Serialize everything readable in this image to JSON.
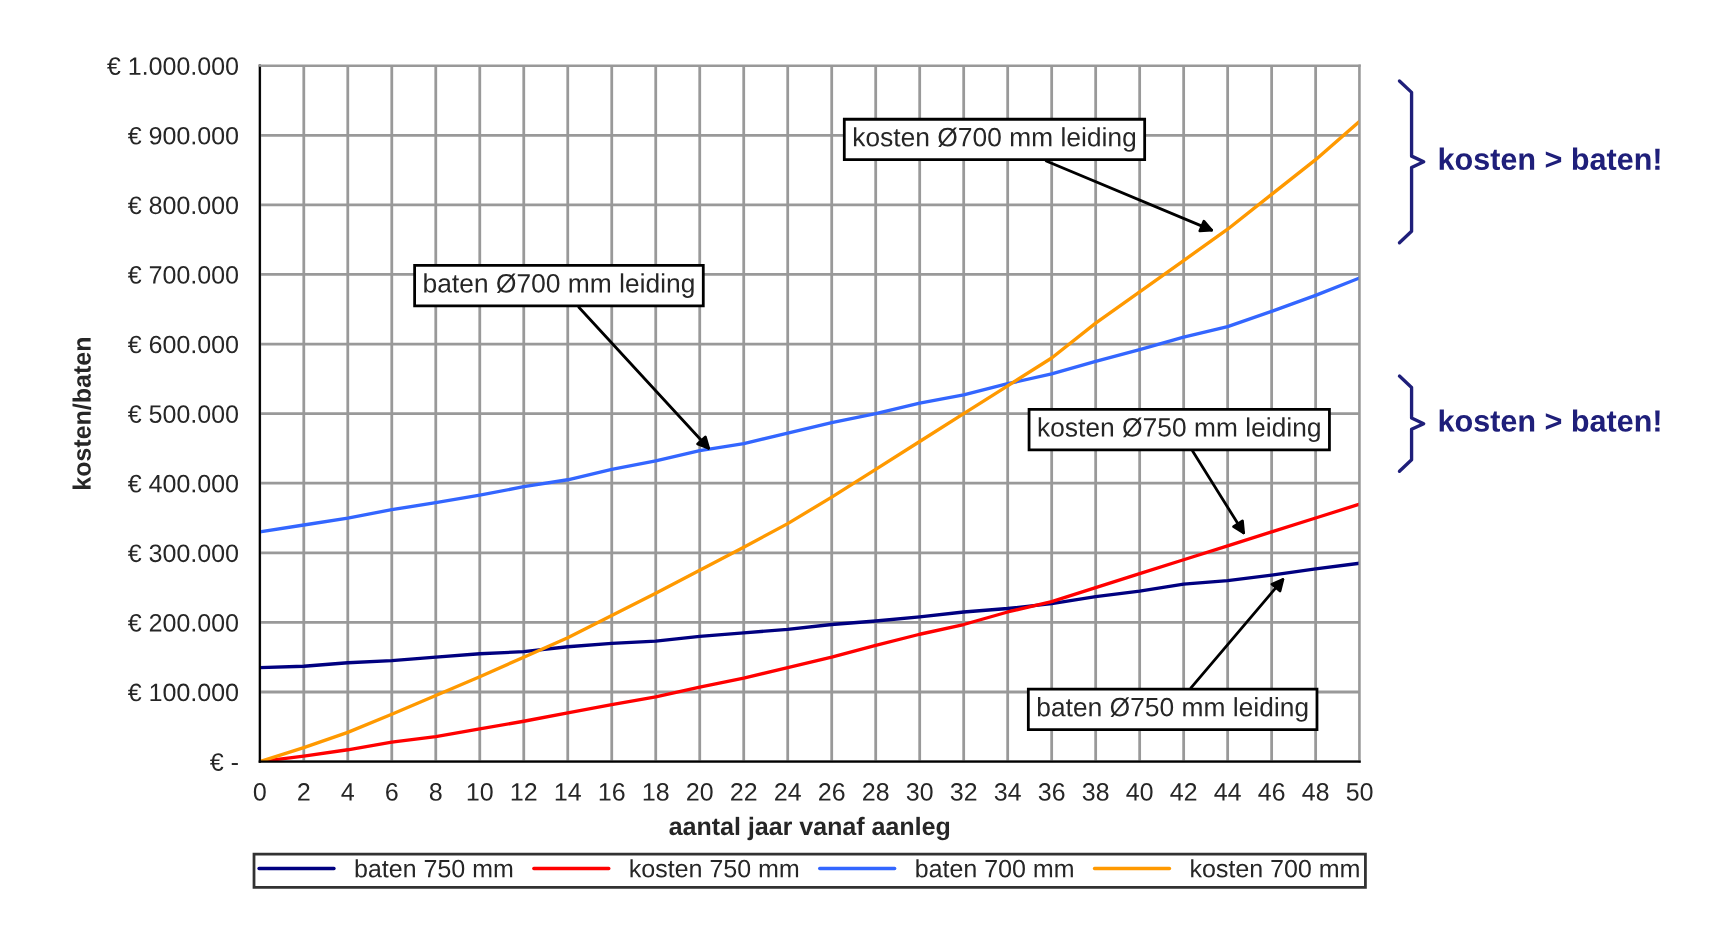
{
  "chart_data": {
    "type": "line",
    "xlabel": "aantal jaar vanaf aanleg",
    "ylabel": "kosten/baten",
    "x": [
      0,
      2,
      4,
      6,
      8,
      10,
      12,
      14,
      16,
      18,
      20,
      22,
      24,
      26,
      28,
      30,
      32,
      34,
      36,
      38,
      40,
      42,
      44,
      46,
      48,
      50
    ],
    "series": [
      {
        "name": "baten 750 mm",
        "color": "#000080",
        "values": [
          135000,
          137000,
          142000,
          145000,
          150000,
          155000,
          158000,
          165000,
          170000,
          173000,
          180000,
          185000,
          190000,
          197000,
          202000,
          208000,
          215000,
          220000,
          227000,
          237000,
          245000,
          255000,
          260000,
          268000,
          277000,
          285000
        ]
      },
      {
        "name": "kosten 750 mm",
        "color": "#ff0000",
        "values": [
          0,
          8000,
          17000,
          28000,
          36000,
          47000,
          58000,
          70000,
          82000,
          93000,
          107000,
          120000,
          135000,
          150000,
          167000,
          183000,
          197000,
          215000,
          230000,
          250000,
          270000,
          290000,
          310000,
          330000,
          350000,
          370000
        ]
      },
      {
        "name": "baten 700 mm",
        "color": "#3366ff",
        "values": [
          330000,
          340000,
          350000,
          362000,
          372000,
          383000,
          395000,
          405000,
          420000,
          432000,
          447000,
          457000,
          472000,
          487000,
          500000,
          515000,
          527000,
          543000,
          557000,
          575000,
          592000,
          610000,
          625000,
          647000,
          670000,
          695000
        ]
      },
      {
        "name": "kosten 700 mm",
        "color": "#ff9900",
        "values": [
          0,
          20000,
          42000,
          68000,
          95000,
          122000,
          150000,
          178000,
          210000,
          242000,
          275000,
          308000,
          342000,
          380000,
          420000,
          460000,
          500000,
          540000,
          580000,
          630000,
          675000,
          720000,
          765000,
          815000,
          865000,
          920000
        ]
      }
    ],
    "xlim": [
      0,
      50
    ],
    "xticks": [
      0,
      2,
      4,
      6,
      8,
      10,
      12,
      14,
      16,
      18,
      20,
      22,
      24,
      26,
      28,
      30,
      32,
      34,
      36,
      38,
      40,
      42,
      44,
      46,
      48,
      50
    ],
    "ylim": [
      0,
      1000000
    ],
    "yticks": [
      {
        "value": 0,
        "label": "€ -"
      },
      {
        "value": 100000,
        "label": "€ 100.000"
      },
      {
        "value": 200000,
        "label": "€ 200.000"
      },
      {
        "value": 300000,
        "label": "€ 300.000"
      },
      {
        "value": 400000,
        "label": "€ 400.000"
      },
      {
        "value": 500000,
        "label": "€ 500.000"
      },
      {
        "value": 600000,
        "label": "€ 600.000"
      },
      {
        "value": 700000,
        "label": "€ 700.000"
      },
      {
        "value": 800000,
        "label": "€ 800.000"
      },
      {
        "value": 900000,
        "label": "€ 900.000"
      },
      {
        "value": 1000000,
        "label": "€ 1.000.000"
      }
    ],
    "annotations": [
      {
        "text": "baten Ø700 mm leiding",
        "x": 20.5,
        "y": 447000
      },
      {
        "text": "kosten Ø700 mm leiding",
        "x": 43.4,
        "y": 762000
      },
      {
        "text": "kosten Ø750 mm leiding",
        "x": 44.8,
        "y": 325000
      },
      {
        "text": "baten Ø750 mm leiding",
        "x": 46.6,
        "y": 265000
      },
      "kosten > baten!",
      "kosten > baten!"
    ],
    "grid": true,
    "legend": "bottom",
    "marker": "none",
    "line_style": "solid"
  }
}
